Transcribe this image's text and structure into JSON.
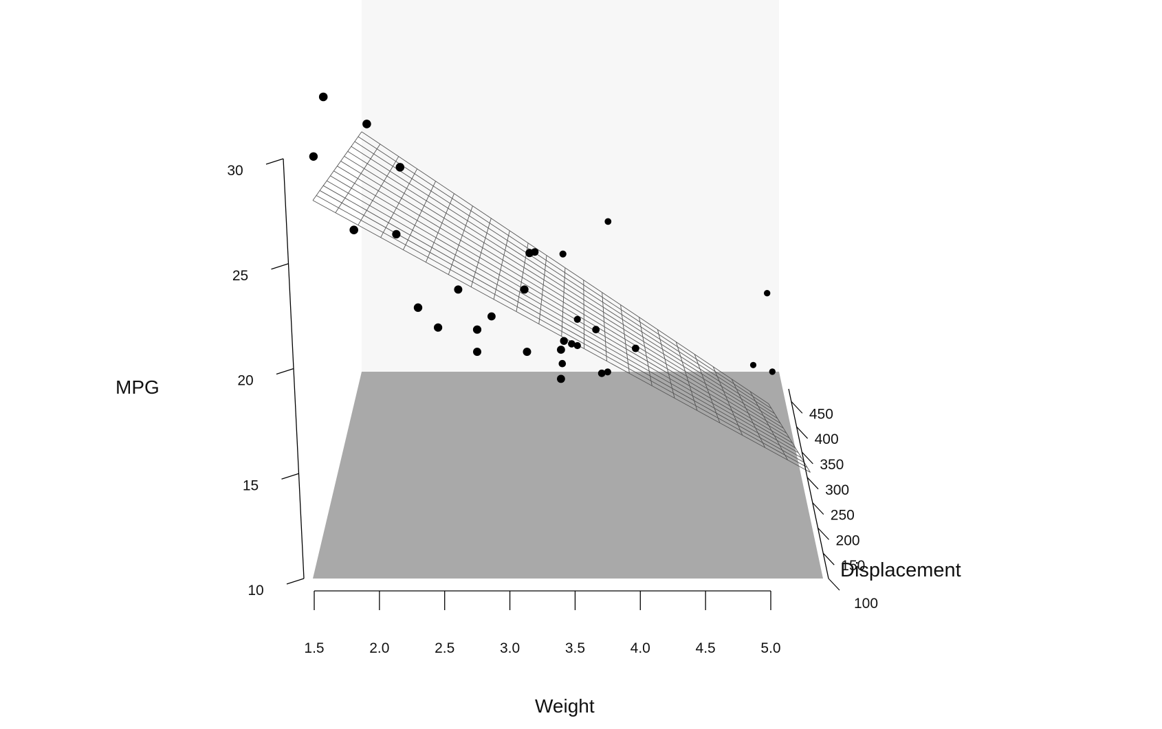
{
  "chart_data": {
    "type": "scatter",
    "subtype": "3d-scatter-with-regression-surface",
    "title": "",
    "xlabel": "Weight",
    "ylabel": "MPG",
    "zlabel": "Displacement",
    "x_ticks": [
      "1.5",
      "2.0",
      "2.5",
      "3.0",
      "3.5",
      "4.0",
      "4.5",
      "5.0"
    ],
    "y_ticks": [
      "10",
      "15",
      "20",
      "25",
      "30"
    ],
    "z_ticks": [
      "100",
      "150",
      "200",
      "250",
      "300",
      "350",
      "400",
      "450"
    ],
    "xlim": [
      1.5,
      5.5
    ],
    "ylim": [
      10,
      30
    ],
    "zlim": [
      100,
      475
    ],
    "grid": false,
    "surface": "fitted regression plane (wireframe mesh)",
    "points": [
      {
        "weight": 1.61,
        "mpg": 33.9,
        "disp": 71.1
      },
      {
        "weight": 2.2,
        "mpg": 30.4,
        "disp": 75.7
      },
      {
        "weight": 1.51,
        "mpg": 30.4,
        "disp": 95.1
      },
      {
        "weight": 1.94,
        "mpg": 32.4,
        "disp": 78.7
      },
      {
        "weight": 1.84,
        "mpg": 27.3,
        "disp": 79.0
      },
      {
        "weight": 2.14,
        "mpg": 26.0,
        "disp": 120.3
      },
      {
        "weight": 2.32,
        "mpg": 22.8,
        "disp": 108.0
      },
      {
        "weight": 2.47,
        "mpg": 21.5,
        "disp": 121.0
      },
      {
        "weight": 2.62,
        "mpg": 22.8,
        "disp": 140.8
      },
      {
        "weight": 2.78,
        "mpg": 21.4,
        "disp": 121.0
      },
      {
        "weight": 2.77,
        "mpg": 19.7,
        "disp": 145.0
      },
      {
        "weight": 2.88,
        "mpg": 21.0,
        "disp": 160.0
      },
      {
        "weight": 3.19,
        "mpg": 24.4,
        "disp": 146.7
      },
      {
        "weight": 3.15,
        "mpg": 22.8,
        "disp": 140.8
      },
      {
        "weight": 3.21,
        "mpg": 21.5,
        "disp": 258.0
      },
      {
        "weight": 3.44,
        "mpg": 18.7,
        "disp": 360.0
      },
      {
        "weight": 3.46,
        "mpg": 18.1,
        "disp": 225.0
      },
      {
        "weight": 3.44,
        "mpg": 19.2,
        "disp": 167.6
      },
      {
        "weight": 3.44,
        "mpg": 17.8,
        "disp": 167.6
      },
      {
        "weight": 3.52,
        "mpg": 15.5,
        "disp": 318.0
      },
      {
        "weight": 3.57,
        "mpg": 14.3,
        "disp": 360.0
      },
      {
        "weight": 3.73,
        "mpg": 17.3,
        "disp": 275.8
      },
      {
        "weight": 3.78,
        "mpg": 15.2,
        "disp": 275.8
      },
      {
        "weight": 3.84,
        "mpg": 13.3,
        "disp": 350.0
      },
      {
        "weight": 3.85,
        "mpg": 19.2,
        "disp": 400.0
      },
      {
        "weight": 4.07,
        "mpg": 16.4,
        "disp": 275.8
      },
      {
        "weight": 3.44,
        "mpg": 15.0,
        "disp": 301.0
      },
      {
        "weight": 3.57,
        "mpg": 15.8,
        "disp": 351.0
      },
      {
        "weight": 3.17,
        "mpg": 19.7,
        "disp": 145.0
      },
      {
        "weight": 5.25,
        "mpg": 10.4,
        "disp": 472.0
      },
      {
        "weight": 5.42,
        "mpg": 10.4,
        "disp": 460.0
      },
      {
        "weight": 5.35,
        "mpg": 14.7,
        "disp": 440.0
      }
    ]
  }
}
